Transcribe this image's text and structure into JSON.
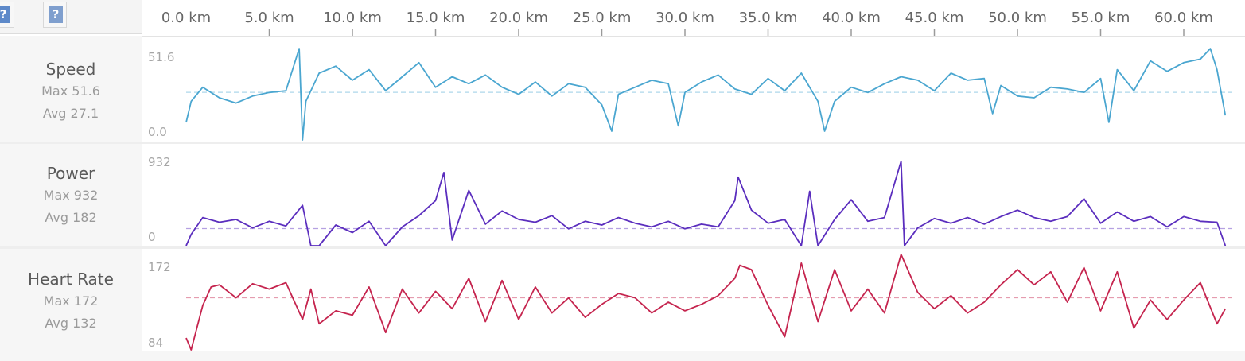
{
  "toolbar": {
    "help_glyph": "?"
  },
  "axis": {
    "unit": "km",
    "ticks": [
      "0.0 km",
      "5.0 km",
      "10.0 km",
      "15.0 km",
      "20.0 km",
      "25.0 km",
      "30.0 km",
      "35.0 km",
      "40.0 km",
      "45.0 km",
      "50.0 km",
      "55.0 km",
      "60.0 km"
    ]
  },
  "rows": [
    {
      "name": "Speed",
      "max_label": "Max 51.6",
      "avg_label": "Avg 27.1",
      "top_tick": "51.6",
      "bottom_tick": "0.0"
    },
    {
      "name": "Power",
      "max_label": "Max 932",
      "avg_label": "Avg 182",
      "top_tick": "932",
      "bottom_tick": "0"
    },
    {
      "name": "Heart Rate",
      "max_label": "Max 172",
      "avg_label": "Avg 132",
      "top_tick": "172",
      "bottom_tick": "84"
    }
  ],
  "chart_data": [
    {
      "type": "line",
      "title": "Speed",
      "xlabel": "km",
      "xlim": [
        0,
        62.5
      ],
      "ylim": [
        0,
        51.6
      ],
      "avg": 27.1,
      "color": "#4aa6d0",
      "series": [
        {
          "values": [
            [
              0,
              10
            ],
            [
              0.3,
              22
            ],
            [
              1,
              30
            ],
            [
              2,
              24
            ],
            [
              3,
              21
            ],
            [
              4,
              25
            ],
            [
              5,
              27
            ],
            [
              6,
              28
            ],
            [
              6.8,
              52
            ],
            [
              7,
              0
            ],
            [
              7.2,
              22
            ],
            [
              8,
              38
            ],
            [
              9,
              42
            ],
            [
              10,
              34
            ],
            [
              11,
              40
            ],
            [
              12,
              28
            ],
            [
              13,
              36
            ],
            [
              14,
              44
            ],
            [
              15,
              30
            ],
            [
              16,
              36
            ],
            [
              17,
              32
            ],
            [
              18,
              37
            ],
            [
              19,
              30
            ],
            [
              20,
              26
            ],
            [
              21,
              33
            ],
            [
              22,
              25
            ],
            [
              23,
              32
            ],
            [
              24,
              30
            ],
            [
              25,
              20
            ],
            [
              25.6,
              5
            ],
            [
              26,
              26
            ],
            [
              27,
              30
            ],
            [
              28,
              34
            ],
            [
              29,
              32
            ],
            [
              29.6,
              8
            ],
            [
              30,
              27
            ],
            [
              31,
              33
            ],
            [
              32,
              37
            ],
            [
              33,
              29
            ],
            [
              34,
              26
            ],
            [
              35,
              35
            ],
            [
              36,
              28
            ],
            [
              37,
              38
            ],
            [
              38,
              22
            ],
            [
              38.4,
              5
            ],
            [
              39,
              22
            ],
            [
              40,
              30
            ],
            [
              41,
              27
            ],
            [
              42,
              32
            ],
            [
              43,
              36
            ],
            [
              44,
              34
            ],
            [
              45,
              28
            ],
            [
              46,
              38
            ],
            [
              47,
              34
            ],
            [
              48,
              35
            ],
            [
              48.5,
              15
            ],
            [
              49,
              31
            ],
            [
              50,
              25
            ],
            [
              51,
              24
            ],
            [
              52,
              30
            ],
            [
              53,
              29
            ],
            [
              54,
              27
            ],
            [
              55,
              35
            ],
            [
              55.5,
              10
            ],
            [
              56,
              40
            ],
            [
              57,
              28
            ],
            [
              58,
              45
            ],
            [
              59,
              39
            ],
            [
              60,
              44
            ],
            [
              61,
              46
            ],
            [
              61.6,
              52
            ],
            [
              62,
              40
            ],
            [
              62.5,
              14
            ]
          ]
        }
      ]
    },
    {
      "type": "line",
      "title": "Power",
      "xlabel": "km",
      "xlim": [
        0,
        62.5
      ],
      "ylim": [
        0,
        932
      ],
      "avg": 182,
      "color": "#5b2ebe",
      "series": [
        {
          "values": [
            [
              0,
              0
            ],
            [
              0.3,
              120
            ],
            [
              1,
              300
            ],
            [
              2,
              250
            ],
            [
              3,
              280
            ],
            [
              4,
              190
            ],
            [
              5,
              260
            ],
            [
              6,
              210
            ],
            [
              7,
              430
            ],
            [
              7.5,
              0
            ],
            [
              8,
              0
            ],
            [
              9,
              220
            ],
            [
              10,
              140
            ],
            [
              11,
              260
            ],
            [
              12,
              0
            ],
            [
              13,
              200
            ],
            [
              14,
              320
            ],
            [
              15,
              480
            ],
            [
              15.5,
              780
            ],
            [
              16,
              60
            ],
            [
              17,
              590
            ],
            [
              18,
              230
            ],
            [
              19,
              370
            ],
            [
              20,
              280
            ],
            [
              21,
              250
            ],
            [
              22,
              320
            ],
            [
              23,
              180
            ],
            [
              24,
              260
            ],
            [
              25,
              220
            ],
            [
              26,
              300
            ],
            [
              27,
              240
            ],
            [
              28,
              200
            ],
            [
              29,
              260
            ],
            [
              30,
              180
            ],
            [
              31,
              230
            ],
            [
              32,
              200
            ],
            [
              33,
              480
            ],
            [
              33.2,
              730
            ],
            [
              34,
              380
            ],
            [
              35,
              240
            ],
            [
              36,
              280
            ],
            [
              37,
              0
            ],
            [
              37.5,
              580
            ],
            [
              38,
              0
            ],
            [
              39,
              280
            ],
            [
              40,
              490
            ],
            [
              41,
              260
            ],
            [
              42,
              300
            ],
            [
              43,
              900
            ],
            [
              43.2,
              0
            ],
            [
              44,
              190
            ],
            [
              45,
              290
            ],
            [
              46,
              240
            ],
            [
              47,
              300
            ],
            [
              48,
              230
            ],
            [
              49,
              310
            ],
            [
              50,
              380
            ],
            [
              51,
              300
            ],
            [
              52,
              260
            ],
            [
              53,
              310
            ],
            [
              54,
              500
            ],
            [
              55,
              240
            ],
            [
              56,
              360
            ],
            [
              57,
              260
            ],
            [
              58,
              310
            ],
            [
              59,
              200
            ],
            [
              60,
              310
            ],
            [
              61,
              260
            ],
            [
              62,
              250
            ],
            [
              62.5,
              0
            ]
          ]
        }
      ]
    },
    {
      "type": "line",
      "title": "Heart Rate",
      "xlabel": "km",
      "xlim": [
        0,
        62.5
      ],
      "ylim": [
        84,
        172
      ],
      "avg": 132,
      "color": "#c5244e",
      "series": [
        {
          "values": [
            [
              0,
              95
            ],
            [
              0.3,
              84
            ],
            [
              1,
              125
            ],
            [
              1.5,
              142
            ],
            [
              2,
              144
            ],
            [
              3,
              132
            ],
            [
              4,
              145
            ],
            [
              5,
              140
            ],
            [
              6,
              146
            ],
            [
              7,
              112
            ],
            [
              7.5,
              140
            ],
            [
              8,
              108
            ],
            [
              9,
              120
            ],
            [
              10,
              116
            ],
            [
              11,
              142
            ],
            [
              12,
              100
            ],
            [
              13,
              140
            ],
            [
              14,
              118
            ],
            [
              15,
              138
            ],
            [
              16,
              122
            ],
            [
              17,
              150
            ],
            [
              18,
              110
            ],
            [
              19,
              148
            ],
            [
              20,
              112
            ],
            [
              21,
              142
            ],
            [
              22,
              118
            ],
            [
              23,
              132
            ],
            [
              24,
              114
            ],
            [
              25,
              126
            ],
            [
              26,
              136
            ],
            [
              27,
              132
            ],
            [
              28,
              118
            ],
            [
              29,
              128
            ],
            [
              30,
              120
            ],
            [
              31,
              126
            ],
            [
              32,
              134
            ],
            [
              33,
              150
            ],
            [
              33.3,
              162
            ],
            [
              34,
              158
            ],
            [
              35,
              125
            ],
            [
              36,
              96
            ],
            [
              37,
              164
            ],
            [
              38,
              110
            ],
            [
              39,
              158
            ],
            [
              40,
              120
            ],
            [
              41,
              140
            ],
            [
              42,
              118
            ],
            [
              43,
              172
            ],
            [
              44,
              137
            ],
            [
              45,
              122
            ],
            [
              46,
              134
            ],
            [
              47,
              118
            ],
            [
              48,
              128
            ],
            [
              49,
              144
            ],
            [
              50,
              158
            ],
            [
              51,
              144
            ],
            [
              52,
              156
            ],
            [
              53,
              128
            ],
            [
              54,
              160
            ],
            [
              55,
              120
            ],
            [
              56,
              156
            ],
            [
              57,
              104
            ],
            [
              58,
              130
            ],
            [
              59,
              112
            ],
            [
              60,
              130
            ],
            [
              61,
              146
            ],
            [
              62,
              108
            ],
            [
              62.5,
              122
            ]
          ]
        }
      ]
    }
  ]
}
